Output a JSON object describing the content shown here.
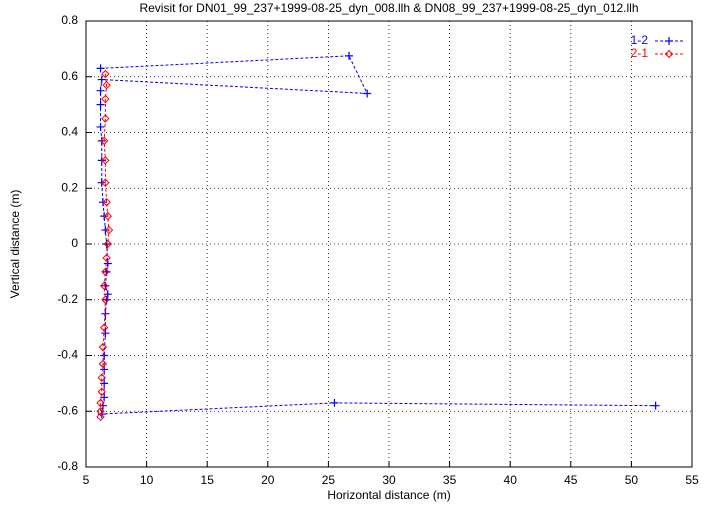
{
  "chart_data": {
    "type": "line",
    "title": "Revisit for DN01_99_237+1999-08-25_dyn_008.llh & DN08_99_237+1999-08-25_dyn_012.llh",
    "xlabel": "Horizontal distance (m)",
    "ylabel": "Vertical distance (m)",
    "xlim": [
      5,
      55
    ],
    "ylim": [
      -0.8,
      0.8
    ],
    "xticks": [
      5,
      10,
      15,
      20,
      25,
      30,
      35,
      40,
      45,
      50,
      55
    ],
    "yticks": [
      -0.8,
      -0.6,
      -0.4,
      -0.2,
      0,
      0.2,
      0.4,
      0.6,
      0.8
    ],
    "grid": true,
    "legend": "upper right",
    "series": [
      {
        "name": "1-2",
        "color": "#0000ff",
        "marker": "plus",
        "x": [
          6.2,
          26.7,
          28.2,
          6.3,
          6.2,
          6.2,
          6.2,
          6.3,
          6.3,
          6.3,
          6.4,
          6.5,
          6.6,
          6.7,
          6.8,
          6.7,
          6.6,
          6.8,
          6.7,
          6.6,
          6.6,
          6.5,
          6.5,
          6.5,
          6.5,
          6.4,
          6.3,
          25.5,
          52.0
        ],
        "values": [
          0.63,
          0.675,
          0.54,
          0.59,
          0.55,
          0.5,
          0.42,
          0.37,
          0.3,
          0.22,
          0.15,
          0.1,
          0.05,
          0.0,
          -0.07,
          -0.1,
          -0.15,
          -0.18,
          -0.2,
          -0.25,
          -0.32,
          -0.4,
          -0.45,
          -0.5,
          -0.55,
          -0.58,
          -0.61,
          -0.57,
          -0.58
        ]
      },
      {
        "name": "2-1",
        "color": "#ff0000",
        "marker": "diamond",
        "x": [
          6.6,
          6.7,
          6.6,
          6.6,
          6.5,
          6.6,
          6.6,
          6.7,
          6.8,
          6.9,
          6.8,
          6.7,
          6.6,
          6.5,
          6.6,
          6.5,
          6.4,
          6.4,
          6.3,
          6.3,
          6.2,
          6.2,
          6.2
        ],
        "values": [
          0.61,
          0.57,
          0.52,
          0.45,
          0.37,
          0.3,
          0.22,
          0.15,
          0.1,
          0.05,
          0.0,
          -0.05,
          -0.1,
          -0.15,
          -0.2,
          -0.3,
          -0.37,
          -0.43,
          -0.48,
          -0.53,
          -0.57,
          -0.6,
          -0.62
        ]
      }
    ]
  }
}
